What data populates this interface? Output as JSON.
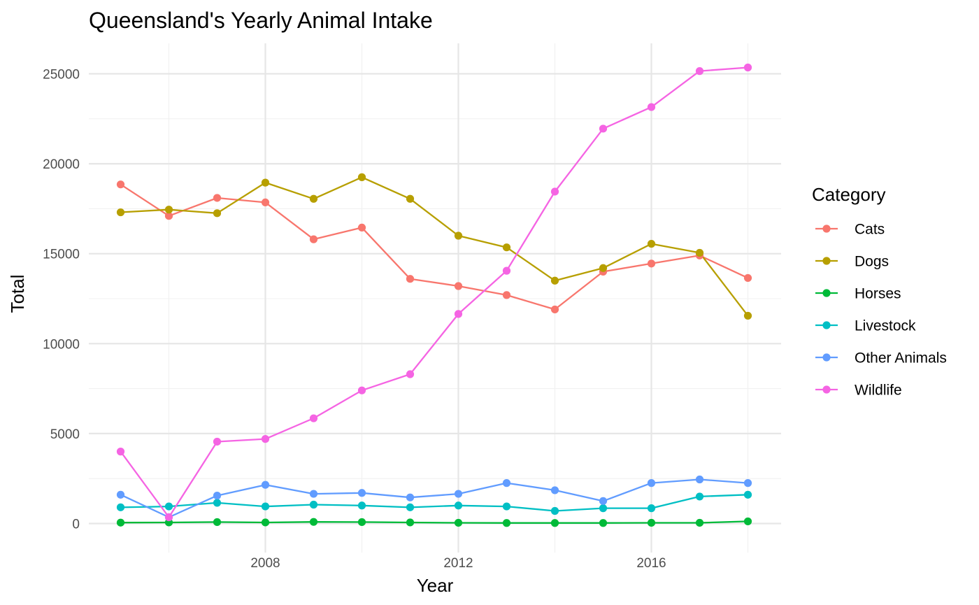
{
  "chart_data": {
    "type": "line",
    "title": "Queensland's Yearly Animal Intake",
    "xlabel": "Year",
    "ylabel": "Total",
    "legend_title": "Category",
    "legend_position": "right",
    "grid": true,
    "x": [
      2005,
      2006,
      2007,
      2008,
      2009,
      2010,
      2011,
      2012,
      2013,
      2014,
      2015,
      2016,
      2017,
      2018
    ],
    "xlim": [
      2004.7,
      2018.3
    ],
    "ylim": [
      -1000,
      26700
    ],
    "x_ticks": [
      2008,
      2012,
      2016
    ],
    "x_tick_labels": [
      "2008",
      "2012",
      "2016"
    ],
    "y_ticks": [
      0,
      5000,
      10000,
      15000,
      20000,
      25000
    ],
    "y_tick_labels": [
      "0",
      "5000",
      "10000",
      "15000",
      "20000",
      "25000"
    ],
    "series": [
      {
        "name": "Cats",
        "color": "#F8766D",
        "values": [
          18850,
          17100,
          18100,
          17850,
          15800,
          16450,
          13600,
          13200,
          12700,
          11900,
          14000,
          14450,
          14900,
          13650
        ]
      },
      {
        "name": "Dogs",
        "color": "#B79F00",
        "values": [
          17300,
          17450,
          17250,
          18950,
          18050,
          19250,
          18050,
          16000,
          15350,
          13500,
          14200,
          15550,
          15050,
          11550
        ]
      },
      {
        "name": "Horses",
        "color": "#00BA38",
        "values": [
          50,
          60,
          80,
          60,
          90,
          80,
          60,
          40,
          30,
          30,
          30,
          40,
          40,
          120
        ]
      },
      {
        "name": "Livestock",
        "color": "#00BFC4",
        "values": [
          900,
          950,
          1150,
          950,
          1050,
          1000,
          900,
          1000,
          950,
          700,
          850,
          850,
          1500,
          1600
        ]
      },
      {
        "name": "Other Animals",
        "color": "#619CFF",
        "values": [
          1600,
          350,
          1550,
          2150,
          1650,
          1700,
          1450,
          1650,
          2250,
          1850,
          1250,
          2250,
          2450,
          2250
        ]
      },
      {
        "name": "Wildlife",
        "color": "#F564E3",
        "values": [
          4000,
          350,
          4550,
          4700,
          5850,
          7400,
          8300,
          11650,
          14050,
          18450,
          21950,
          23150,
          25150,
          25350
        ]
      }
    ]
  }
}
